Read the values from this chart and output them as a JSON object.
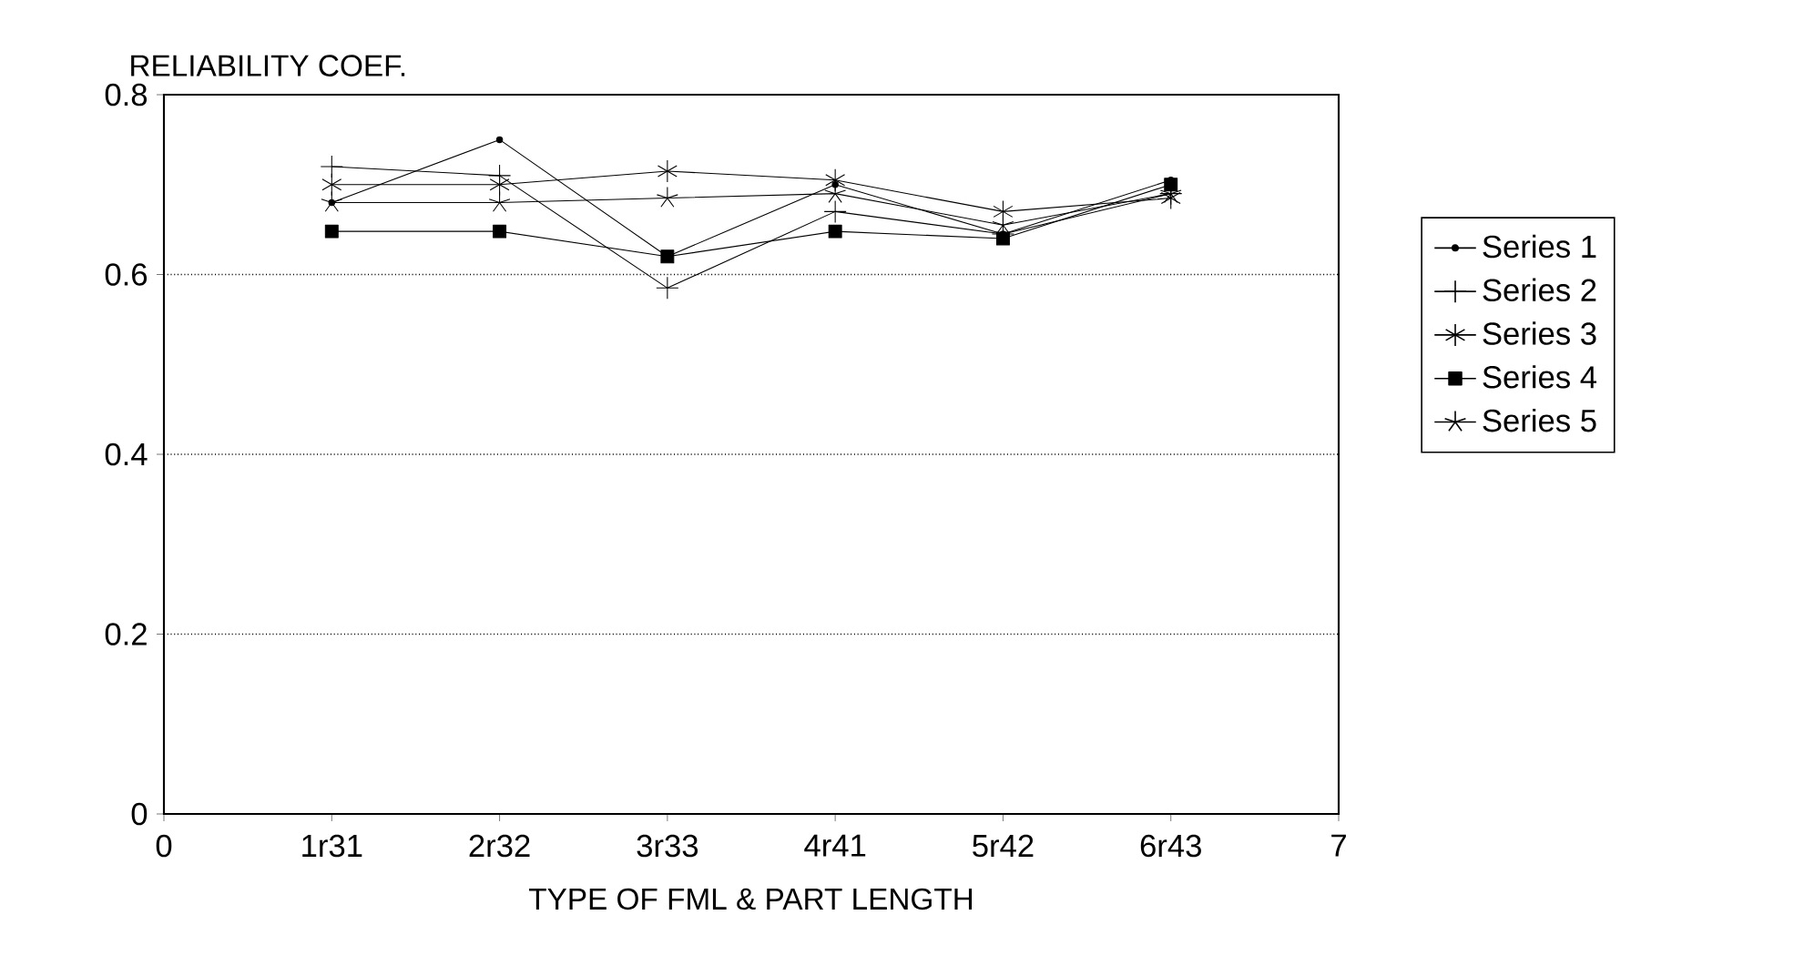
{
  "chart_data": {
    "type": "line",
    "xlabel": "TYPE OF FML & PART LENGTH",
    "ylabel": "RELIABILITY COEF.",
    "x": [
      1,
      2,
      3,
      4,
      5,
      6
    ],
    "xlim": [
      0,
      7
    ],
    "xticks": [
      0,
      {
        "value": 1,
        "label": "1r31"
      },
      {
        "value": 2,
        "label": "2r32"
      },
      {
        "value": 3,
        "label": "3r33"
      },
      {
        "value": 4,
        "label": "4r41"
      },
      {
        "value": 5,
        "label": "5r42"
      },
      {
        "value": 6,
        "label": "6r43"
      },
      7
    ],
    "ylim": [
      0,
      0.8
    ],
    "yticks": [
      0,
      0.2,
      0.4,
      0.6,
      0.8
    ],
    "grid": "y",
    "legend": "right",
    "series": [
      {
        "name": "Series 1",
        "color": "#000000",
        "marker": "circle",
        "values": [
          0.68,
          0.75,
          0.62,
          0.7,
          0.645,
          0.705
        ]
      },
      {
        "name": "Series 2",
        "color": "#000000",
        "marker": "cross",
        "values": [
          0.72,
          0.71,
          0.585,
          0.67,
          0.645,
          0.69
        ]
      },
      {
        "name": "Series 3",
        "color": "#000000",
        "marker": "cross",
        "values": [
          0.7,
          0.7,
          0.715,
          0.705,
          0.67,
          0.685
        ]
      },
      {
        "name": "Series 4",
        "color": "#000000",
        "marker": "square",
        "values": [
          0.648,
          0.648,
          0.62,
          0.648,
          0.64,
          0.7
        ]
      },
      {
        "name": "Series 5",
        "color": "#000000",
        "marker": "cross",
        "values": [
          0.68,
          0.68,
          0.685,
          0.69,
          0.655,
          0.69
        ]
      }
    ]
  }
}
